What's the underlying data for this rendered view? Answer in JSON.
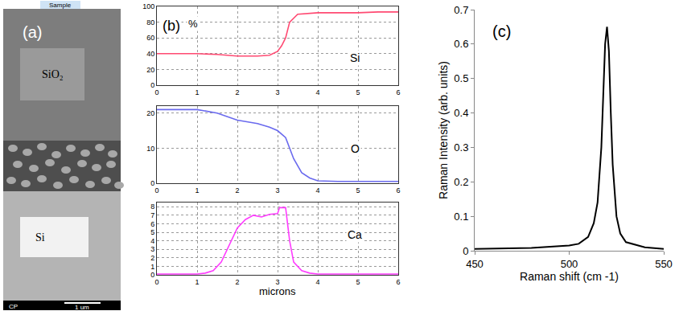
{
  "chart_data": [
    {
      "type": "image",
      "label": "(a)",
      "header": "Sample",
      "regions": [
        "SiO₂",
        "Si"
      ],
      "footer": "CP",
      "scale_bar": "1 um"
    },
    {
      "type": "line",
      "label": "(b)",
      "ylabel": "%",
      "xlabel": "microns",
      "grid": true,
      "xlim": [
        0,
        6
      ],
      "xticks": [
        0,
        1,
        2,
        3,
        4,
        5,
        6
      ],
      "panels": [
        {
          "name": "Si",
          "color": "#ff4a72",
          "x": [
            0,
            0.5,
            1,
            1.5,
            2,
            2.5,
            2.8,
            3,
            3.1,
            3.2,
            3.3,
            3.5,
            4,
            4.5,
            5,
            5.5,
            6
          ],
          "values": [
            40,
            40,
            40,
            39,
            37,
            37,
            38,
            43,
            50,
            60,
            80,
            90,
            92,
            92,
            92,
            93,
            93
          ],
          "ylim": [
            0,
            100
          ],
          "yticks": [
            0,
            20,
            40,
            60,
            80,
            100
          ]
        },
        {
          "name": "O",
          "color": "#6a6aee",
          "x": [
            0,
            0.5,
            1,
            1.5,
            2,
            2.5,
            2.8,
            3,
            3.2,
            3.4,
            3.6,
            3.8,
            4,
            4.5,
            5,
            6
          ],
          "values": [
            21,
            21,
            21,
            20,
            18,
            17,
            16,
            15,
            13,
            7,
            3,
            1.5,
            0.7,
            0.5,
            0.5,
            0.5
          ],
          "ylim": [
            0,
            22
          ],
          "yticks": [
            0,
            10,
            20
          ]
        },
        {
          "name": "Ca",
          "color": "#ff3cff",
          "x": [
            0,
            1,
            1.2,
            1.4,
            1.6,
            1.8,
            2,
            2.2,
            2.4,
            2.6,
            2.8,
            3,
            3.05,
            3.2,
            3.3,
            3.4,
            3.6,
            3.8,
            4,
            6
          ],
          "values": [
            0.1,
            0.1,
            0.2,
            0.5,
            1.5,
            3.5,
            5.5,
            6.5,
            7,
            6.8,
            7.1,
            7.2,
            7.9,
            7.9,
            4,
            1.5,
            0.5,
            0.2,
            0.1,
            0.1
          ],
          "ylim": [
            0,
            8.5
          ],
          "yticks": [
            0,
            1,
            2,
            3,
            4,
            5,
            6,
            7,
            8
          ]
        }
      ]
    },
    {
      "type": "line",
      "label": "(c)",
      "xlabel": "Raman shift (cm -1)",
      "ylabel": "Raman Intensity (arb. units)",
      "color": "#000000",
      "grid": false,
      "x": [
        450,
        480,
        500,
        505,
        510,
        513,
        515,
        517,
        518,
        519,
        520,
        521,
        522,
        523,
        525,
        527,
        530,
        540,
        550
      ],
      "values": [
        0.005,
        0.008,
        0.015,
        0.02,
        0.04,
        0.08,
        0.14,
        0.3,
        0.45,
        0.6,
        0.65,
        0.58,
        0.4,
        0.25,
        0.1,
        0.05,
        0.025,
        0.01,
        0.005
      ],
      "xlim": [
        450,
        550
      ],
      "xticks": [
        450,
        500,
        550
      ],
      "ylim": [
        0,
        0.7
      ],
      "yticks": [
        0,
        0.1,
        0.2,
        0.3,
        0.4,
        0.5,
        0.6,
        0.7
      ]
    }
  ]
}
